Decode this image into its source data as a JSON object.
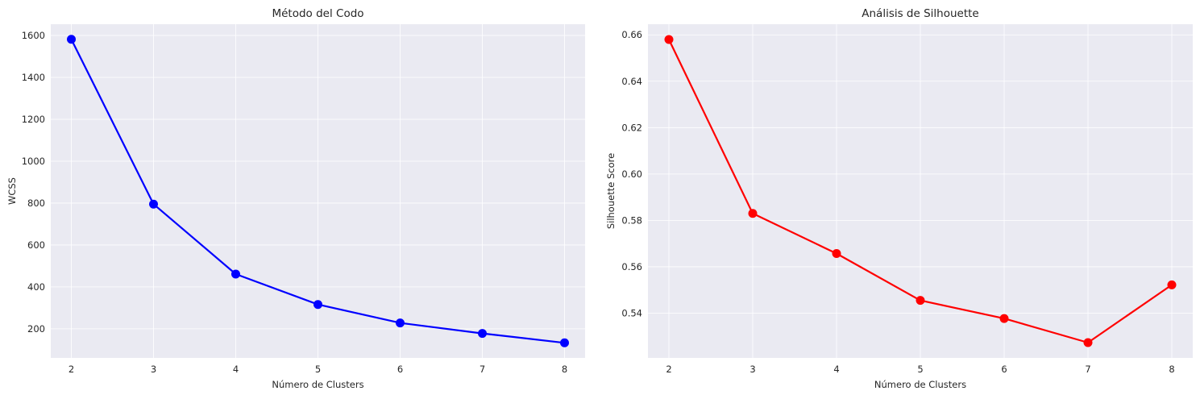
{
  "chart_data": [
    {
      "type": "line",
      "title": "Método del Codo",
      "xlabel": "Número de Clusters",
      "ylabel": "WCSS",
      "x": [
        2,
        3,
        4,
        5,
        6,
        7,
        8
      ],
      "series": [
        {
          "name": "WCSS",
          "color": "#0000ff",
          "values": [
            1582,
            795,
            461,
            316,
            228,
            178,
            133
          ]
        }
      ],
      "xlim": [
        1.75,
        8.25
      ],
      "ylim": [
        61,
        1654
      ],
      "xticks": [
        2,
        3,
        4,
        5,
        6,
        7,
        8
      ],
      "yticks": [
        200,
        400,
        600,
        800,
        1000,
        1200,
        1400,
        1600
      ],
      "ytick_labels": [
        "200",
        "400",
        "600",
        "800",
        "1000",
        "1200",
        "1400",
        "1600"
      ],
      "grid": true
    },
    {
      "type": "line",
      "title": "Análisis de Silhouette",
      "xlabel": "Número de Clusters",
      "ylabel": "Silhouette Score",
      "x": [
        2,
        3,
        4,
        5,
        6,
        7,
        8
      ],
      "series": [
        {
          "name": "Silhouette Score",
          "color": "#ff0000",
          "values": [
            0.658,
            0.583,
            0.5657,
            0.5455,
            0.5377,
            0.5273,
            0.5522
          ]
        }
      ],
      "xlim": [
        1.75,
        8.25
      ],
      "ylim": [
        0.5207,
        0.6646
      ],
      "xticks": [
        2,
        3,
        4,
        5,
        6,
        7,
        8
      ],
      "yticks": [
        0.54,
        0.56,
        0.58,
        0.6,
        0.62,
        0.64,
        0.66
      ],
      "ytick_labels": [
        "0.54",
        "0.56",
        "0.58",
        "0.60",
        "0.62",
        "0.64",
        "0.66"
      ],
      "grid": true
    }
  ]
}
